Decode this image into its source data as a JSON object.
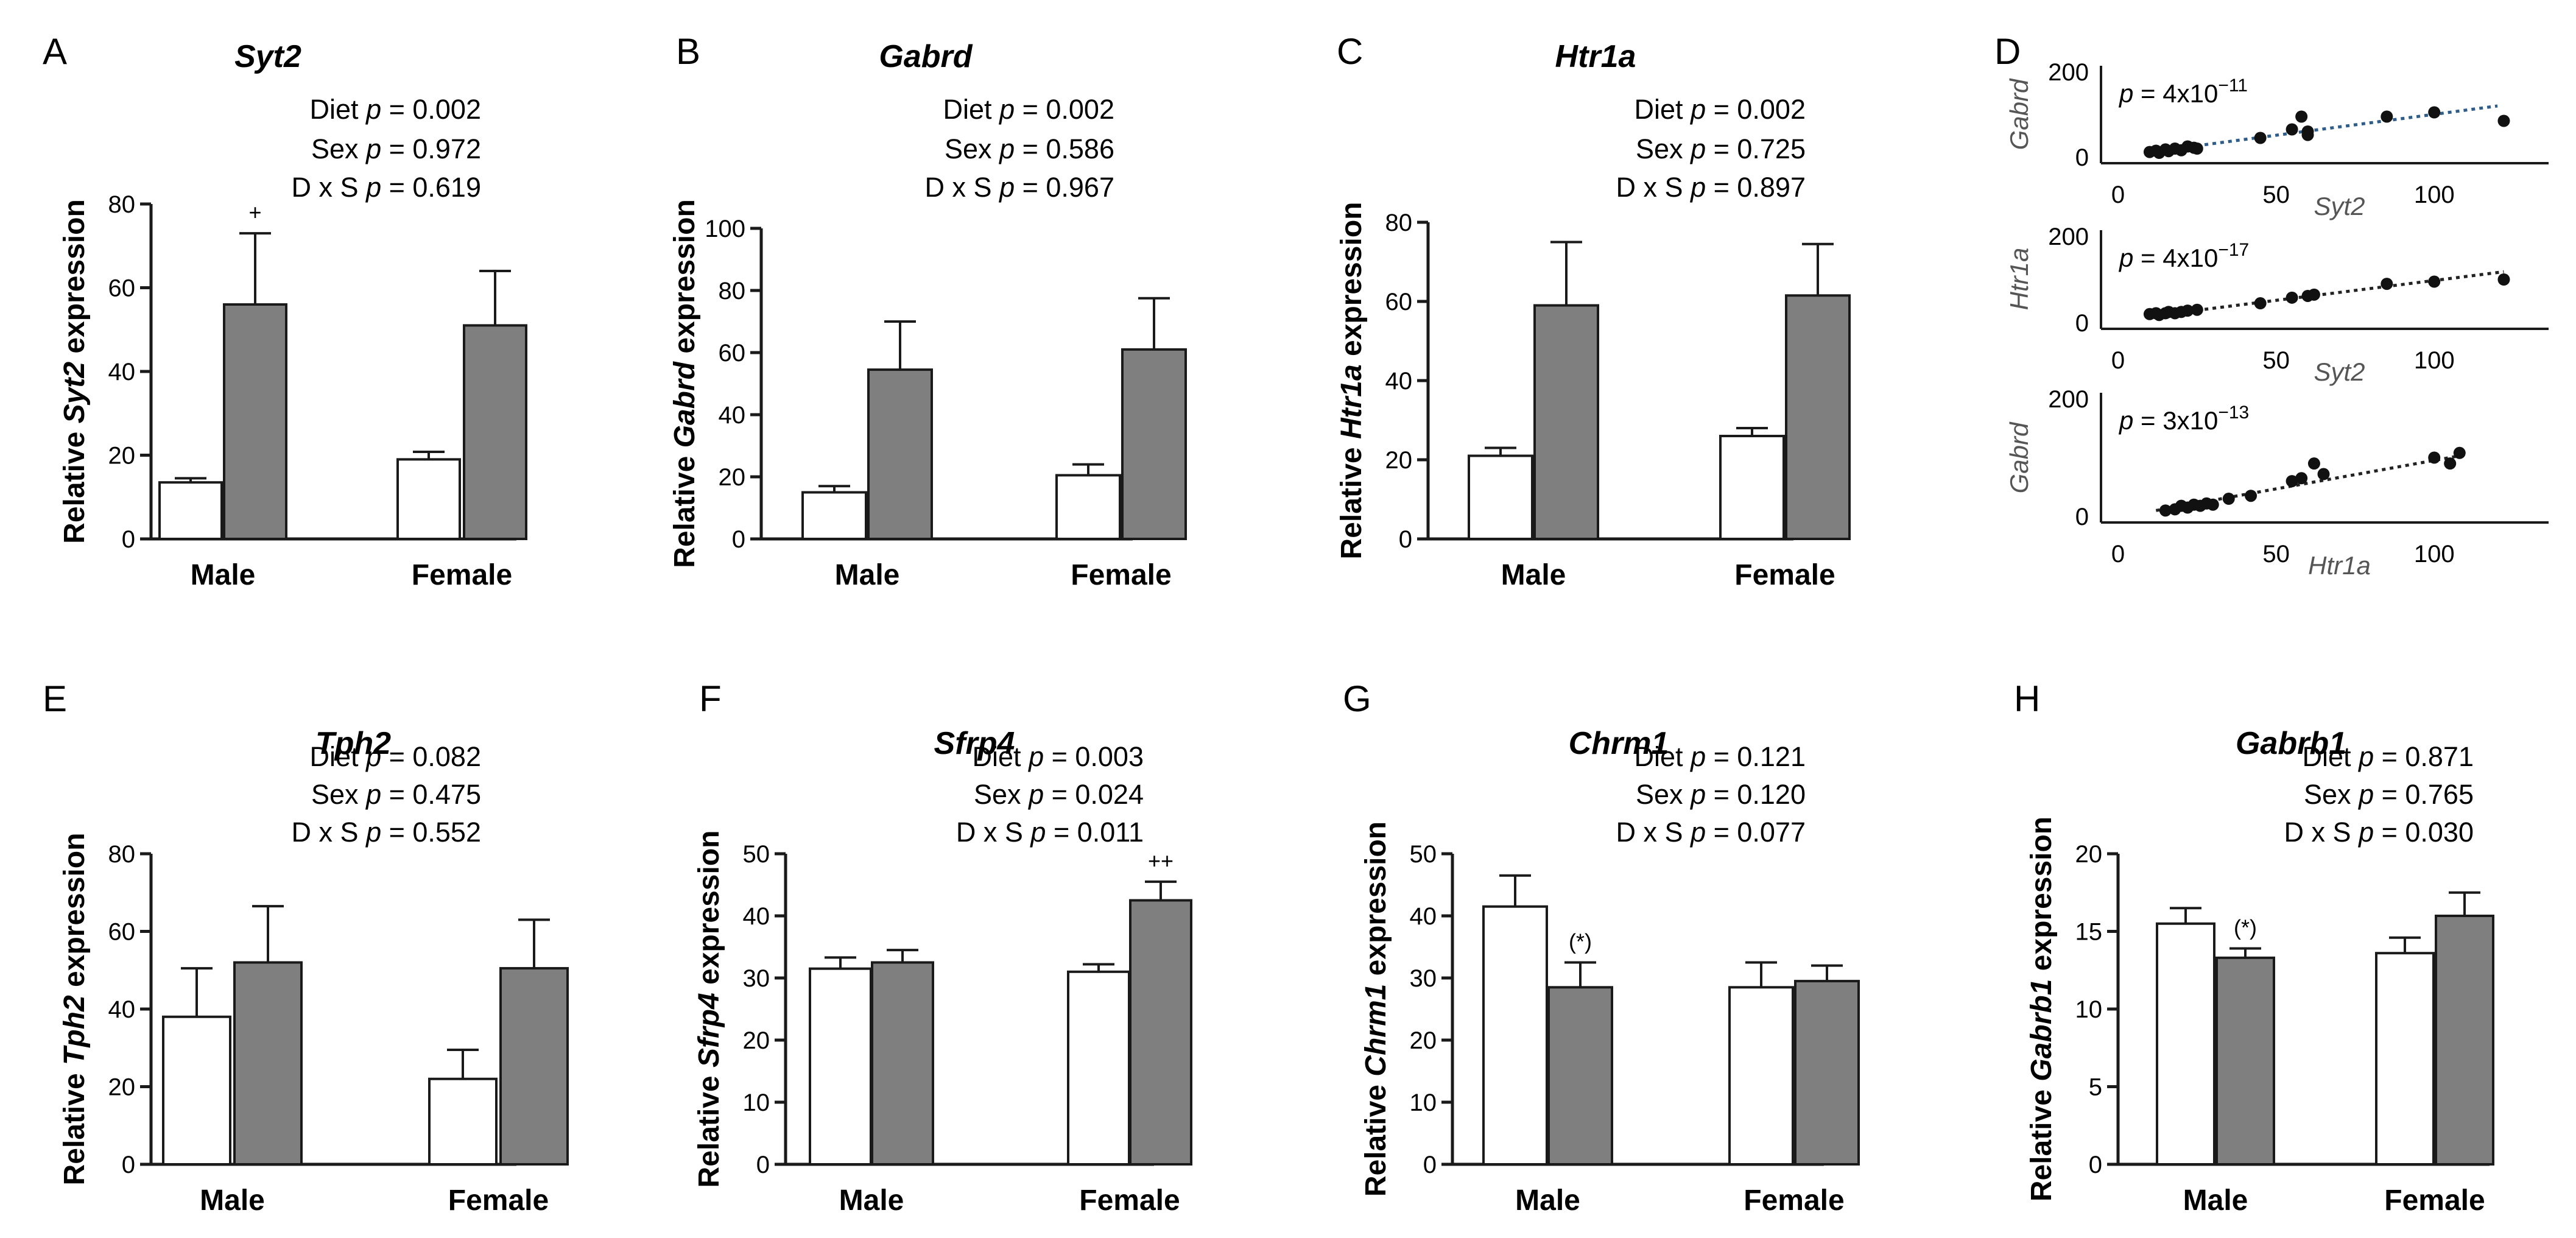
{
  "colors": {
    "control": "#ffffff",
    "diet": "#7f7f7f",
    "outline": "#1a1a1a",
    "scatter_fit_line_first": "#2f5d8a",
    "scatter_fit_line": "#222222"
  },
  "categories": [
    "Male",
    "Female"
  ],
  "chart_data": [
    {
      "panel": "A",
      "type": "bar",
      "title": "Syt2",
      "stats": [
        "Diet p = 0.002",
        "Sex p = 0.972",
        "D x S p = 0.619"
      ],
      "ylabel": "Relative Syt2 expression",
      "ylim": [
        0,
        80
      ],
      "yticks": [
        0,
        20,
        40,
        60,
        80
      ],
      "categories": [
        "Male",
        "Female"
      ],
      "series": [
        {
          "values": [
            13.5,
            19
          ],
          "errors": [
            1,
            1.8
          ]
        },
        {
          "values": [
            56,
            51
          ],
          "errors": [
            17,
            13
          ]
        }
      ],
      "annotations": [
        {
          "category": 0,
          "series": 1,
          "text": "+"
        }
      ]
    },
    {
      "panel": "B",
      "type": "bar",
      "title": "Gabrd",
      "stats": [
        "Diet p = 0.002",
        "Sex p = 0.586",
        "D x S p = 0.967"
      ],
      "ylabel": "Relative Gabrd expression",
      "ylim": [
        0,
        100
      ],
      "yticks": [
        0,
        20,
        40,
        60,
        80,
        100
      ],
      "categories": [
        "Male",
        "Female"
      ],
      "series": [
        {
          "values": [
            15,
            20.5
          ],
          "errors": [
            2,
            3.5
          ]
        },
        {
          "values": [
            54.5,
            61
          ],
          "errors": [
            15.5,
            16.5
          ]
        }
      ],
      "annotations": []
    },
    {
      "panel": "C",
      "type": "bar",
      "title": "Htr1a",
      "stats": [
        "Diet p = 0.002",
        "Sex p = 0.725",
        "D x S p = 0.897"
      ],
      "ylabel": "Relative Htr1a expression",
      "ylim": [
        0,
        80
      ],
      "yticks": [
        0,
        20,
        40,
        60,
        80
      ],
      "categories": [
        "Male",
        "Female"
      ],
      "series": [
        {
          "values": [
            21,
            26
          ],
          "errors": [
            2,
            2
          ]
        },
        {
          "values": [
            59,
            61.5
          ],
          "errors": [
            16,
            13
          ]
        }
      ],
      "annotations": []
    },
    {
      "panel": "E",
      "type": "bar",
      "title": "Tph2",
      "stats": [
        "Diet p = 0.082",
        "Sex p = 0.475",
        "D x S p = 0.552"
      ],
      "ylabel": "Relative Tph2 expression",
      "ylim": [
        0,
        80
      ],
      "yticks": [
        0,
        20,
        40,
        60,
        80
      ],
      "categories": [
        "Male",
        "Female"
      ],
      "series": [
        {
          "values": [
            38,
            22
          ],
          "errors": [
            12.5,
            7.5
          ]
        },
        {
          "values": [
            52,
            50.5
          ],
          "errors": [
            14.5,
            12.5
          ]
        }
      ],
      "annotations": []
    },
    {
      "panel": "F",
      "type": "bar",
      "title": "Sfrp4",
      "stats": [
        "Diet p = 0.003",
        "Sex p = 0.024",
        "D x S p = 0.011"
      ],
      "ylabel": "Relative Sfrp4 expression",
      "ylim": [
        0,
        50
      ],
      "yticks": [
        0,
        10,
        20,
        30,
        40,
        50
      ],
      "categories": [
        "Male",
        "Female"
      ],
      "series": [
        {
          "values": [
            31.5,
            31
          ],
          "errors": [
            1.8,
            1.2
          ]
        },
        {
          "values": [
            32.5,
            42.5
          ],
          "errors": [
            2,
            3
          ]
        }
      ],
      "annotations": [
        {
          "category": 1,
          "series": 1,
          "text": "++"
        }
      ]
    },
    {
      "panel": "G",
      "type": "bar",
      "title": "Chrm1",
      "stats": [
        "Diet p = 0.121",
        "Sex p = 0.120",
        "D x S p = 0.077"
      ],
      "ylabel": "Relative Chrm1 expression",
      "ylim": [
        0,
        50
      ],
      "yticks": [
        0,
        10,
        20,
        30,
        40,
        50
      ],
      "categories": [
        "Male",
        "Female"
      ],
      "series": [
        {
          "values": [
            41.5,
            28.5
          ],
          "errors": [
            5,
            4
          ]
        },
        {
          "values": [
            28.5,
            29.5
          ],
          "errors": [
            4,
            2.5
          ]
        }
      ],
      "annotations": [
        {
          "category": 0,
          "series": 1,
          "text": "(*)"
        }
      ]
    },
    {
      "panel": "H",
      "type": "bar",
      "title": "Gabrb1",
      "stats": [
        "Diet p = 0.871",
        "Sex p = 0.765",
        "D x S p = 0.030"
      ],
      "ylabel": "Relative Gabrb1 expression",
      "ylim": [
        0,
        20
      ],
      "yticks": [
        0,
        5,
        10,
        15,
        20
      ],
      "categories": [
        "Male",
        "Female"
      ],
      "series": [
        {
          "values": [
            15.5,
            13.6
          ],
          "errors": [
            1,
            1
          ]
        },
        {
          "values": [
            13.3,
            16
          ],
          "errors": [
            0.6,
            1.5
          ]
        }
      ],
      "annotations": [
        {
          "category": 0,
          "series": 1,
          "text": "(*)"
        }
      ]
    },
    {
      "panel": "D",
      "type": "scatter",
      "subplots": [
        {
          "xlabel": "Syt2",
          "ylabel": "Gabrd",
          "p_label": "p = 4x10",
          "p_exp": "−11",
          "xlim": [
            0,
            130
          ],
          "ylim": [
            0,
            200
          ],
          "xticks": [
            0,
            50,
            100
          ],
          "yticks": [
            0,
            200
          ],
          "fit": {
            "x": [
              10,
              120
            ],
            "y": [
              12,
              120
            ]
          },
          "points": [
            [
              10,
              12
            ],
            [
              12,
              15
            ],
            [
              13,
              10
            ],
            [
              15,
              18
            ],
            [
              16,
              14
            ],
            [
              18,
              20
            ],
            [
              20,
              16
            ],
            [
              22,
              25
            ],
            [
              24,
              22
            ],
            [
              25,
              20
            ],
            [
              45,
              45
            ],
            [
              55,
              65
            ],
            [
              58,
              95
            ],
            [
              60,
              52
            ],
            [
              60,
              60
            ],
            [
              85,
              95
            ],
            [
              100,
              105
            ],
            [
              122,
              85
            ]
          ]
        },
        {
          "xlabel": "Syt2",
          "ylabel": "Htr1a",
          "p_label": "p = 4x10",
          "p_exp": "−17",
          "xlim": [
            0,
            130
          ],
          "ylim": [
            0,
            200
          ],
          "xticks": [
            0,
            50,
            100
          ],
          "yticks": [
            0,
            200
          ],
          "fit": {
            "x": [
              10,
              122
            ],
            "y": [
              15,
              118
            ]
          },
          "points": [
            [
              10,
              20
            ],
            [
              12,
              22
            ],
            [
              13,
              18
            ],
            [
              15,
              22
            ],
            [
              16,
              25
            ],
            [
              18,
              22
            ],
            [
              20,
              25
            ],
            [
              22,
              28
            ],
            [
              25,
              30
            ],
            [
              45,
              45
            ],
            [
              55,
              58
            ],
            [
              60,
              62
            ],
            [
              62,
              65
            ],
            [
              85,
              90
            ],
            [
              100,
              95
            ],
            [
              122,
              100
            ]
          ]
        },
        {
          "xlabel": "Htr1a",
          "ylabel": "Gabrd",
          "p_label": "p = 3x10",
          "p_exp": "−13",
          "xlim": [
            0,
            130
          ],
          "ylim": [
            0,
            200
          ],
          "xticks": [
            0,
            50,
            100
          ],
          "yticks": [
            0,
            200
          ],
          "fit": {
            "x": [
              12,
              110
            ],
            "y": [
              10,
              105
            ]
          },
          "points": [
            [
              15,
              10
            ],
            [
              18,
              12
            ],
            [
              20,
              18
            ],
            [
              22,
              15
            ],
            [
              24,
              20
            ],
            [
              26,
              18
            ],
            [
              28,
              22
            ],
            [
              30,
              20
            ],
            [
              35,
              30
            ],
            [
              42,
              35
            ],
            [
              55,
              60
            ],
            [
              58,
              65
            ],
            [
              62,
              90
            ],
            [
              65,
              72
            ],
            [
              100,
              100
            ],
            [
              105,
              90
            ],
            [
              108,
              108
            ]
          ]
        }
      ]
    }
  ]
}
